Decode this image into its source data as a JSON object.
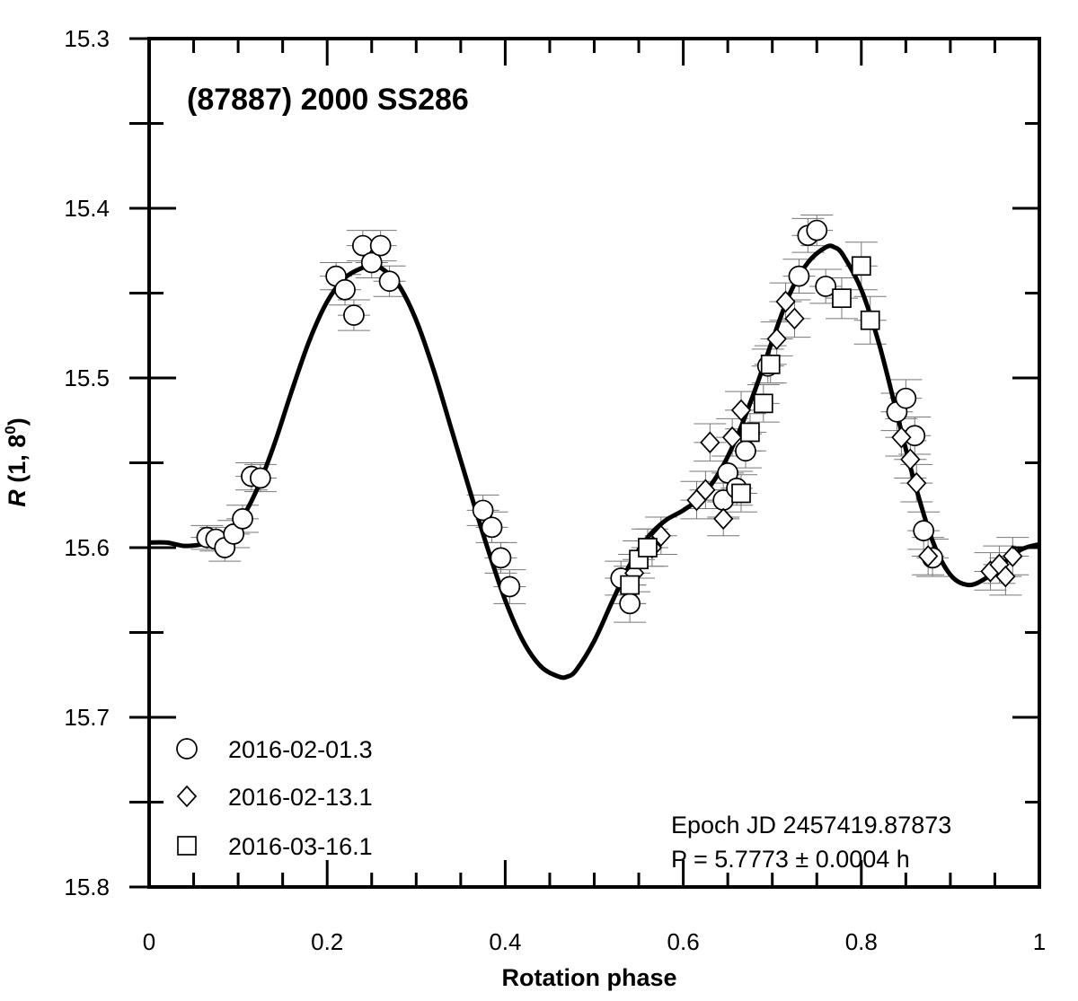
{
  "chart_data": {
    "type": "scatter",
    "title": "(87887) 2000 SS286",
    "xlabel": "Rotation phase",
    "ylabel_main": "R",
    "ylabel_rest": " (1, 8",
    "ylabel_sup": "0",
    "ylabel_close": ")",
    "xlim": [
      0,
      1
    ],
    "ylim": [
      15.3,
      15.8
    ],
    "y_inverted": true,
    "x_ticks": [
      0,
      0.2,
      0.4,
      0.6,
      0.8,
      1
    ],
    "x_tick_labels": [
      "0",
      "0.2",
      "0.4",
      "0.6",
      "0.8",
      "1"
    ],
    "y_ticks": [
      15.3,
      15.4,
      15.5,
      15.6,
      15.7,
      15.8
    ],
    "y_tick_labels": [
      "15.3",
      "15.4",
      "15.5",
      "15.6",
      "15.7",
      "15.8"
    ],
    "grid": false,
    "legend_position": "bottom-left",
    "series": [
      {
        "name": "2016-02-01.3",
        "marker": "circle",
        "points": [
          [
            0.065,
            15.594,
            0.007
          ],
          [
            0.075,
            15.595,
            0.007
          ],
          [
            0.085,
            15.6,
            0.008
          ],
          [
            0.095,
            15.592,
            0.008
          ],
          [
            0.105,
            15.583,
            0.008
          ],
          [
            0.115,
            15.558,
            0.008
          ],
          [
            0.125,
            15.559,
            0.008
          ],
          [
            0.21,
            15.44,
            0.008
          ],
          [
            0.22,
            15.448,
            0.009
          ],
          [
            0.23,
            15.463,
            0.009
          ],
          [
            0.24,
            15.422,
            0.009
          ],
          [
            0.25,
            15.432,
            0.009
          ],
          [
            0.26,
            15.422,
            0.009
          ],
          [
            0.27,
            15.443,
            0.009
          ],
          [
            0.375,
            15.578,
            0.009
          ],
          [
            0.385,
            15.588,
            0.009
          ],
          [
            0.395,
            15.606,
            0.009
          ],
          [
            0.405,
            15.623,
            0.01
          ],
          [
            0.53,
            15.618,
            0.01
          ],
          [
            0.54,
            15.633,
            0.011
          ],
          [
            0.65,
            15.556,
            0.01
          ],
          [
            0.645,
            15.572,
            0.01
          ],
          [
            0.66,
            15.565,
            0.01
          ],
          [
            0.67,
            15.543,
            0.01
          ],
          [
            0.695,
            15.493,
            0.01
          ],
          [
            0.73,
            15.44,
            0.01
          ],
          [
            0.74,
            15.416,
            0.01
          ],
          [
            0.75,
            15.413,
            0.009
          ],
          [
            0.76,
            15.446,
            0.01
          ],
          [
            0.84,
            15.52,
            0.011
          ],
          [
            0.85,
            15.512,
            0.011
          ],
          [
            0.86,
            15.534,
            0.011
          ],
          [
            0.87,
            15.59,
            0.011
          ],
          [
            0.88,
            15.606,
            0.011
          ]
        ]
      },
      {
        "name": "2016-02-13.1",
        "marker": "diamond",
        "points": [
          [
            0.545,
            15.615,
            0.011
          ],
          [
            0.565,
            15.6,
            0.011
          ],
          [
            0.575,
            15.593,
            0.011
          ],
          [
            0.615,
            15.572,
            0.011
          ],
          [
            0.625,
            15.566,
            0.011
          ],
          [
            0.63,
            15.538,
            0.011
          ],
          [
            0.645,
            15.583,
            0.01
          ],
          [
            0.655,
            15.535,
            0.011
          ],
          [
            0.665,
            15.519,
            0.011
          ],
          [
            0.705,
            15.477,
            0.01
          ],
          [
            0.715,
            15.455,
            0.011
          ],
          [
            0.725,
            15.465,
            0.011
          ],
          [
            0.845,
            15.535,
            0.011
          ],
          [
            0.855,
            15.548,
            0.011
          ],
          [
            0.862,
            15.562,
            0.011
          ],
          [
            0.875,
            15.605,
            0.011
          ],
          [
            0.945,
            15.614,
            0.011
          ],
          [
            0.955,
            15.61,
            0.011
          ],
          [
            0.962,
            15.617,
            0.011
          ],
          [
            0.97,
            15.605,
            0.011
          ]
        ]
      },
      {
        "name": "2016-03-16.1",
        "marker": "square",
        "points": [
          [
            0.54,
            15.622,
            0.011
          ],
          [
            0.55,
            15.607,
            0.011
          ],
          [
            0.56,
            15.6,
            0.011
          ],
          [
            0.665,
            15.568,
            0.011
          ],
          [
            0.675,
            15.532,
            0.011
          ],
          [
            0.69,
            15.515,
            0.011
          ],
          [
            0.698,
            15.492,
            0.011
          ],
          [
            0.778,
            15.453,
            0.012
          ],
          [
            0.8,
            15.434,
            0.014
          ],
          [
            0.81,
            15.466,
            0.014
          ]
        ]
      }
    ],
    "fit_curve": [
      [
        0.0,
        15.597
      ],
      [
        0.02,
        15.597
      ],
      [
        0.04,
        15.599
      ],
      [
        0.06,
        15.598
      ],
      [
        0.08,
        15.595
      ],
      [
        0.1,
        15.586
      ],
      [
        0.12,
        15.567
      ],
      [
        0.14,
        15.54
      ],
      [
        0.16,
        15.508
      ],
      [
        0.18,
        15.478
      ],
      [
        0.2,
        15.455
      ],
      [
        0.22,
        15.441
      ],
      [
        0.24,
        15.435
      ],
      [
        0.25,
        15.434
      ],
      [
        0.26,
        15.435
      ],
      [
        0.28,
        15.445
      ],
      [
        0.3,
        15.466
      ],
      [
        0.32,
        15.496
      ],
      [
        0.34,
        15.531
      ],
      [
        0.36,
        15.566
      ],
      [
        0.38,
        15.6
      ],
      [
        0.4,
        15.631
      ],
      [
        0.42,
        15.655
      ],
      [
        0.44,
        15.67
      ],
      [
        0.46,
        15.676
      ],
      [
        0.47,
        15.676
      ],
      [
        0.48,
        15.672
      ],
      [
        0.5,
        15.655
      ],
      [
        0.52,
        15.632
      ],
      [
        0.54,
        15.61
      ],
      [
        0.56,
        15.594
      ],
      [
        0.58,
        15.584
      ],
      [
        0.6,
        15.578
      ],
      [
        0.62,
        15.57
      ],
      [
        0.64,
        15.556
      ],
      [
        0.66,
        15.535
      ],
      [
        0.68,
        15.508
      ],
      [
        0.7,
        15.478
      ],
      [
        0.72,
        15.45
      ],
      [
        0.74,
        15.432
      ],
      [
        0.76,
        15.423
      ],
      [
        0.77,
        15.423
      ],
      [
        0.78,
        15.428
      ],
      [
        0.8,
        15.448
      ],
      [
        0.82,
        15.48
      ],
      [
        0.84,
        15.521
      ],
      [
        0.86,
        15.562
      ],
      [
        0.88,
        15.596
      ],
      [
        0.9,
        15.616
      ],
      [
        0.92,
        15.622
      ],
      [
        0.94,
        15.618
      ],
      [
        0.96,
        15.609
      ],
      [
        0.98,
        15.601
      ],
      [
        1.0,
        15.598
      ]
    ],
    "annotations": {
      "epoch": "Epoch JD 2457419.87873",
      "period": "P = 5.7773 ± 0.0004 h"
    }
  }
}
